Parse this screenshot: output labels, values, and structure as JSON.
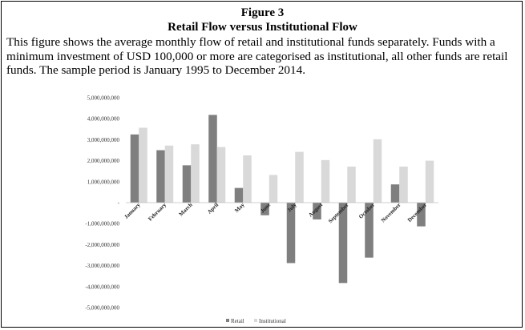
{
  "figure": {
    "number": "Figure 3",
    "title": "Retail Flow versus Institutional Flow",
    "caption": "This figure shows the average monthly flow of retail and institutional funds separately. Funds with a minimum investment of USD 100,000 or more are categorised as institutional, all other funds are retail funds. The sample period is January 1995 to December 2014."
  },
  "chart_data": {
    "type": "bar",
    "categories": [
      "January",
      "February",
      "March",
      "April",
      "May",
      "June",
      "July",
      "August",
      "September",
      "October",
      "November",
      "December"
    ],
    "series": [
      {
        "name": "Retail",
        "color": "#7f7f7f",
        "values": [
          3250000000,
          2500000000,
          1780000000,
          4180000000,
          700000000,
          -600000000,
          -2880000000,
          -800000000,
          -3830000000,
          -2620000000,
          870000000,
          -1130000000
        ]
      },
      {
        "name": "Institutional",
        "color": "#d9d9d9",
        "values": [
          3570000000,
          2720000000,
          2780000000,
          2650000000,
          2250000000,
          1320000000,
          2420000000,
          2030000000,
          1720000000,
          3020000000,
          1720000000,
          2000000000
        ]
      }
    ],
    "ylim": [
      -5000000000,
      5000000000
    ],
    "yticks": [
      {
        "value": 5000000000,
        "label": "5,000,000,000"
      },
      {
        "value": 4000000000,
        "label": "4,000,000,000"
      },
      {
        "value": 3000000000,
        "label": "3,000,000,000"
      },
      {
        "value": 2000000000,
        "label": "2,000,000,000"
      },
      {
        "value": 1000000000,
        "label": "1,000,000,000"
      },
      {
        "value": 0,
        "label": "-"
      },
      {
        "value": -1000000000,
        "label": "-1,000,000,000"
      },
      {
        "value": -2000000000,
        "label": "-2,000,000,000"
      },
      {
        "value": -3000000000,
        "label": "-3,000,000,000"
      },
      {
        "value": -4000000000,
        "label": "-4,000,000,000"
      },
      {
        "value": -5000000000,
        "label": "-5,000,000,000"
      }
    ],
    "grid": false,
    "legend_position": "bottom"
  }
}
